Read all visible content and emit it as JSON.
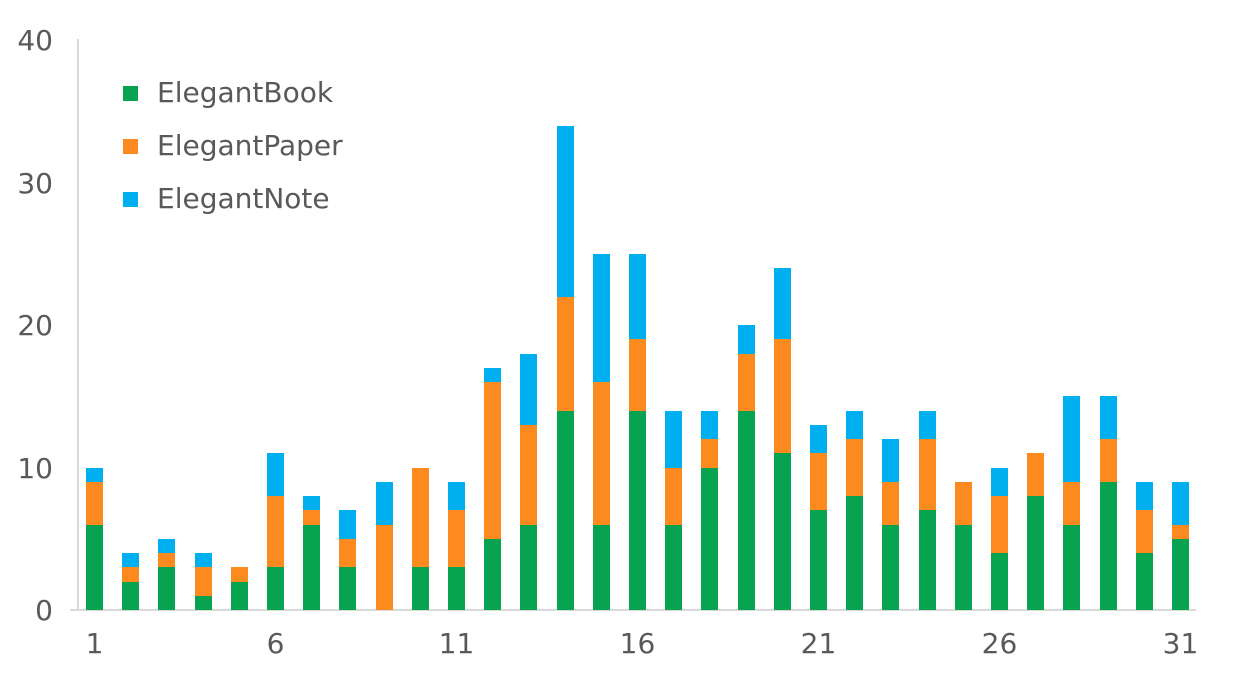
{
  "chart_data": {
    "type": "bar",
    "stacked": true,
    "title": "",
    "xlabel": "",
    "ylabel": "",
    "categories": [
      1,
      2,
      3,
      4,
      5,
      6,
      7,
      8,
      9,
      10,
      11,
      12,
      13,
      14,
      15,
      16,
      17,
      18,
      19,
      20,
      21,
      22,
      23,
      24,
      25,
      26,
      27,
      28,
      29,
      30,
      31
    ],
    "series": [
      {
        "name": "ElegantBook",
        "color": "#07A350",
        "values": [
          6,
          2,
          3,
          1,
          2,
          3,
          6,
          3,
          0,
          3,
          3,
          5,
          6,
          14,
          6,
          14,
          6,
          10,
          14,
          11,
          7,
          8,
          6,
          7,
          6,
          4,
          8,
          6,
          9,
          4,
          5
        ]
      },
      {
        "name": "ElegantPaper",
        "color": "#FC8A1F",
        "values": [
          3,
          1,
          1,
          2,
          1,
          5,
          1,
          2,
          6,
          7,
          4,
          11,
          7,
          8,
          10,
          5,
          4,
          2,
          4,
          8,
          4,
          4,
          3,
          5,
          3,
          4,
          3,
          3,
          3,
          3,
          1
        ]
      },
      {
        "name": "ElegantNote",
        "color": "#00AFF0",
        "values": [
          1,
          1,
          1,
          1,
          0,
          3,
          1,
          2,
          3,
          0,
          2,
          1,
          5,
          12,
          9,
          6,
          4,
          2,
          2,
          5,
          2,
          2,
          3,
          2,
          0,
          2,
          0,
          6,
          3,
          2,
          3
        ]
      }
    ],
    "ylim": [
      0,
      40
    ],
    "y_ticks": [
      0,
      10,
      20,
      30,
      40
    ],
    "x_tick_positions": [
      1,
      6,
      11,
      16,
      21,
      26,
      31
    ],
    "x_tick_labels": [
      "1",
      "6",
      "11",
      "16",
      "21",
      "26",
      "31"
    ],
    "grid": false,
    "legend_position": "top-left",
    "axis_line_color": "#D9D9D9",
    "tick_label_color": "#595959"
  }
}
